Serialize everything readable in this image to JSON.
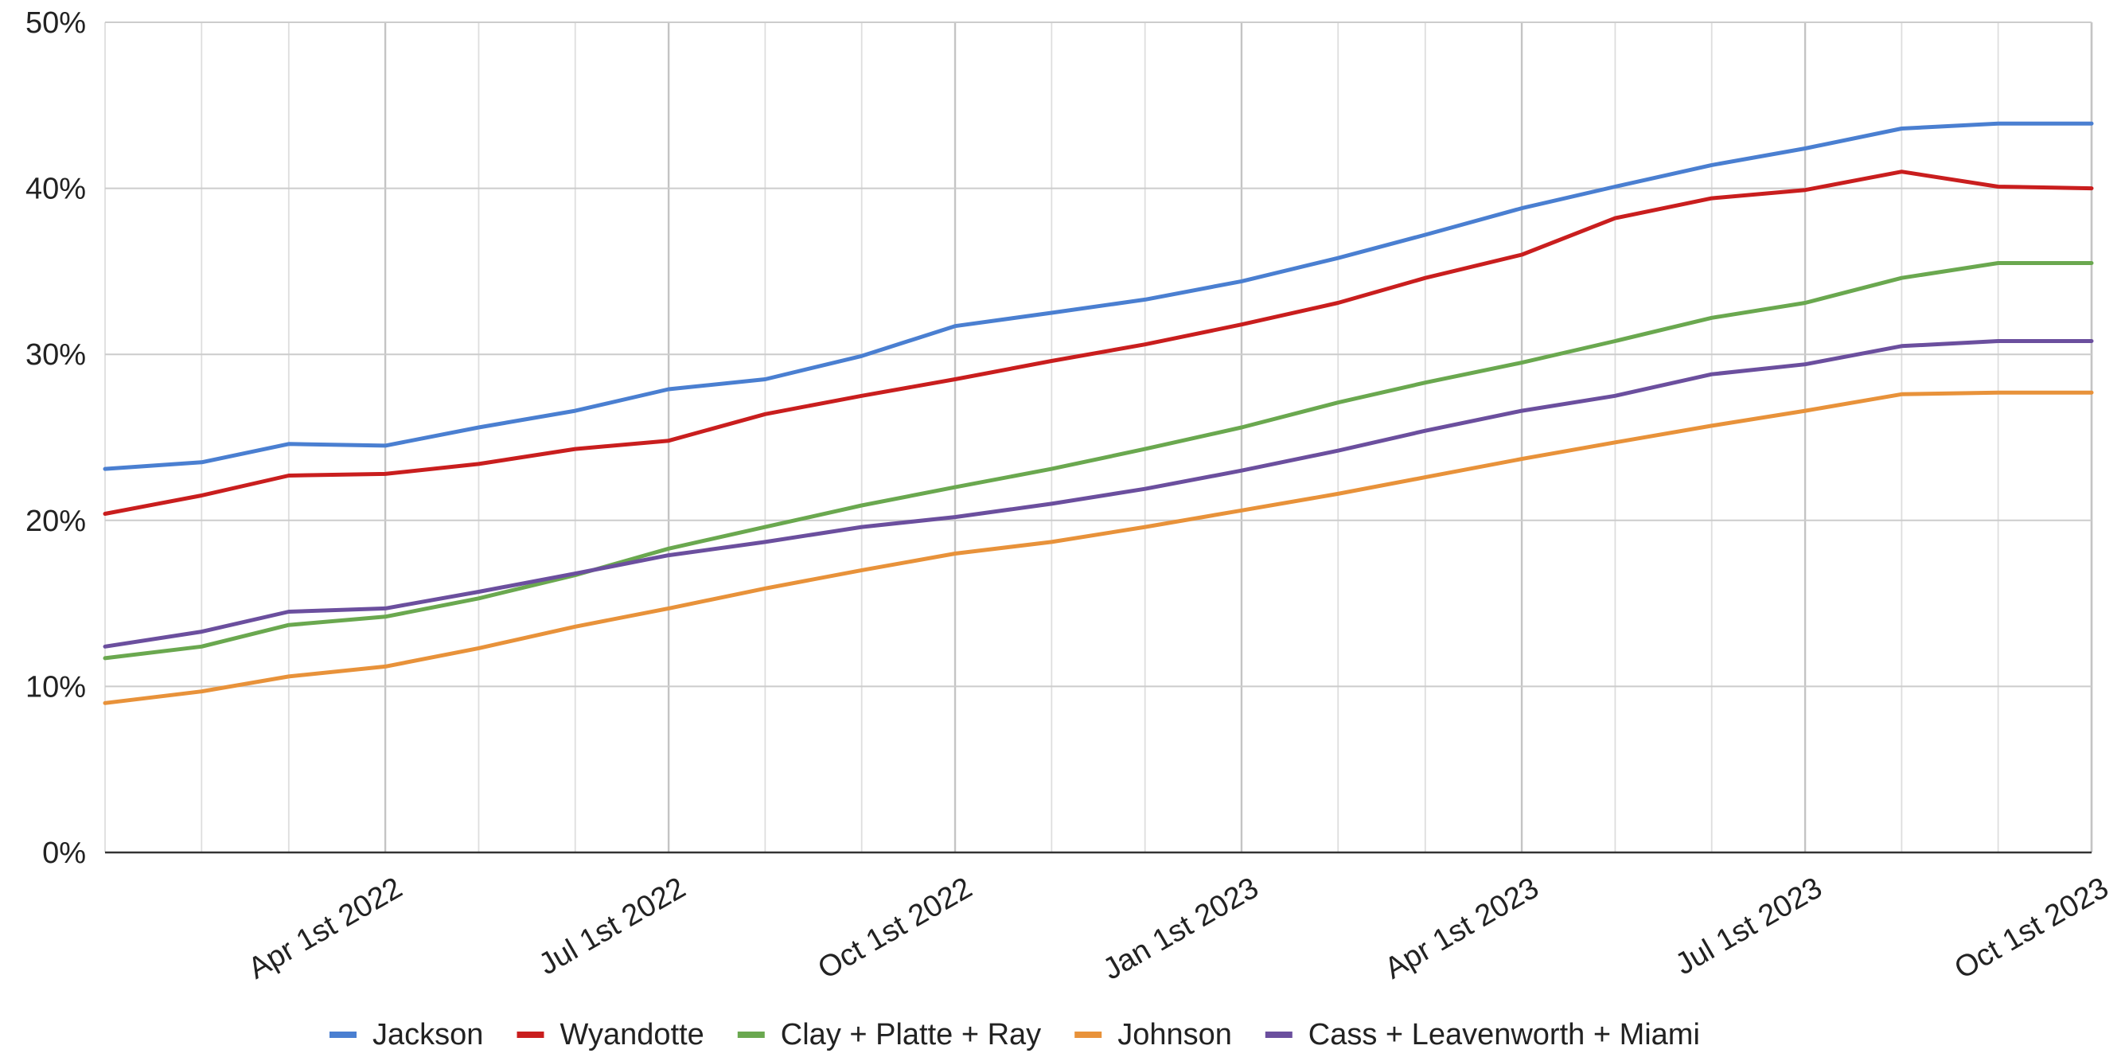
{
  "chart_data": {
    "type": "line",
    "title": "",
    "xlabel": "",
    "ylabel": "",
    "ylim": [
      0,
      50
    ],
    "xlim": [
      "2022-01-01",
      "2023-10-01"
    ],
    "grid": true,
    "legend_position": "bottom",
    "y_ticks": [
      {
        "value": 0,
        "label": "0%"
      },
      {
        "value": 10,
        "label": "10%"
      },
      {
        "value": 20,
        "label": "20%"
      },
      {
        "value": 30,
        "label": "30%"
      },
      {
        "value": 40,
        "label": "40%"
      },
      {
        "value": 50,
        "label": "50%"
      }
    ],
    "x_ticks": [
      {
        "date": "2022-04-01",
        "label": "Apr 1st 2022"
      },
      {
        "date": "2022-07-01",
        "label": "Jul 1st 2022"
      },
      {
        "date": "2022-10-01",
        "label": "Oct 1st 2022"
      },
      {
        "date": "2023-01-01",
        "label": "Jan 1st 2023"
      },
      {
        "date": "2023-04-01",
        "label": "Apr 1st 2023"
      },
      {
        "date": "2023-07-01",
        "label": "Jul 1st 2023"
      },
      {
        "date": "2023-10-01",
        "label": "Oct 1st 2023"
      }
    ],
    "x": [
      "2022-01-01",
      "2022-02-01",
      "2022-03-01",
      "2022-04-01",
      "2022-05-01",
      "2022-06-01",
      "2022-07-01",
      "2022-08-01",
      "2022-09-01",
      "2022-10-01",
      "2022-11-01",
      "2022-12-01",
      "2023-01-01",
      "2023-02-01",
      "2023-03-01",
      "2023-04-01",
      "2023-05-01",
      "2023-06-01",
      "2023-07-01",
      "2023-08-01",
      "2023-09-01",
      "2023-10-01"
    ],
    "series": [
      {
        "name": "Jackson",
        "color": "#4a7fd1",
        "values": [
          23.1,
          23.5,
          24.6,
          24.5,
          25.6,
          26.6,
          27.9,
          28.5,
          29.9,
          31.7,
          32.5,
          33.3,
          34.4,
          35.8,
          37.2,
          38.8,
          40.1,
          41.4,
          42.4,
          43.6,
          43.9,
          43.9
        ]
      },
      {
        "name": "Wyandotte",
        "color": "#c91e1e",
        "values": [
          20.4,
          21.5,
          22.7,
          22.8,
          23.4,
          24.3,
          24.8,
          26.4,
          27.5,
          28.5,
          29.6,
          30.6,
          31.8,
          33.1,
          34.6,
          36.0,
          38.2,
          39.4,
          39.9,
          41.0,
          40.1,
          40.0
        ]
      },
      {
        "name": "Clay + Platte + Ray",
        "color": "#6aa84f",
        "values": [
          11.7,
          12.4,
          13.7,
          14.2,
          15.3,
          16.7,
          18.3,
          19.6,
          20.9,
          22.0,
          23.1,
          24.3,
          25.6,
          27.1,
          28.3,
          29.5,
          30.8,
          32.2,
          33.1,
          34.6,
          35.5,
          35.5
        ]
      },
      {
        "name": "Johnson",
        "color": "#e8923a",
        "values": [
          9.0,
          9.7,
          10.6,
          11.2,
          12.3,
          13.6,
          14.7,
          15.9,
          17.0,
          18.0,
          18.7,
          19.6,
          20.6,
          21.6,
          22.6,
          23.7,
          24.7,
          25.7,
          26.6,
          27.6,
          27.7,
          27.7
        ]
      },
      {
        "name": "Cass + Leavenworth + Miami",
        "color": "#6b4f9e",
        "values": [
          12.4,
          13.3,
          14.5,
          14.7,
          15.7,
          16.8,
          17.9,
          18.7,
          19.6,
          20.2,
          21.0,
          21.9,
          23.0,
          24.2,
          25.4,
          26.6,
          27.5,
          28.8,
          29.4,
          30.5,
          30.8,
          30.8
        ]
      }
    ]
  }
}
